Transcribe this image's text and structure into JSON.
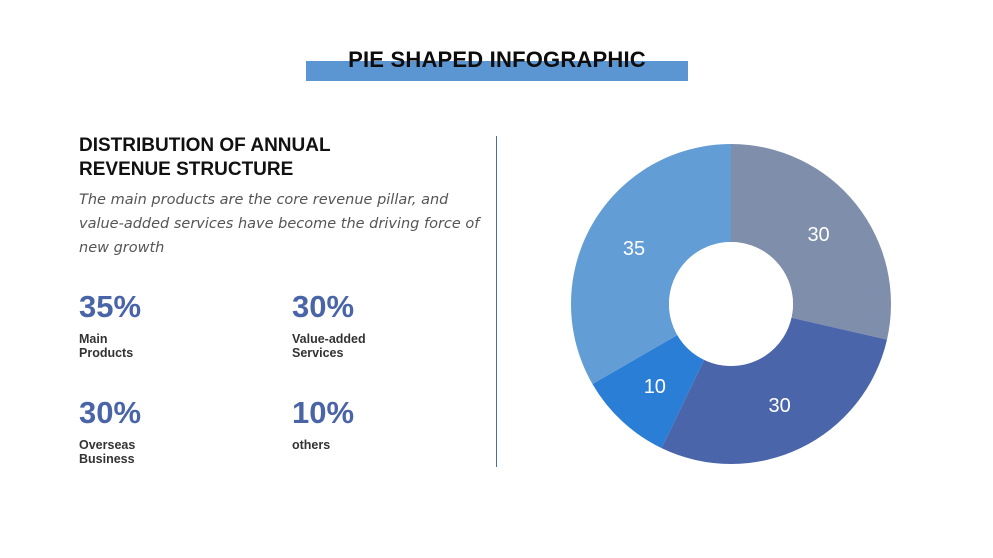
{
  "title": "PIE SHAPED INFOGRAPHIC",
  "heading": "DISTRIBUTION OF ANNUAL REVENUE STRUCTURE",
  "subtitle": "The main products are the core revenue pillar, and value-added services have become the driving force of new growth",
  "stats": [
    {
      "value": "35%",
      "label": "Main\nProducts"
    },
    {
      "value": "30%",
      "label": "Value-added\nServices"
    },
    {
      "value": "30%",
      "label": "Overseas\nBusiness"
    },
    {
      "value": "10%",
      "label": "others"
    }
  ],
  "colors": {
    "accent_bar": "#5b95d2",
    "stat_value": "#4a64a8",
    "divider": "#4a6fa8"
  },
  "chart_data": {
    "type": "pie",
    "donut": true,
    "start": "top",
    "direction": "clockwise",
    "slices": [
      {
        "name": "Value-added Services",
        "value": 30,
        "label": "30",
        "color": "#7e8eab"
      },
      {
        "name": "Overseas Business",
        "value": 30,
        "label": "30",
        "color": "#4a65aa"
      },
      {
        "name": "others",
        "value": 10,
        "label": "10",
        "color": "#2b7ed6"
      },
      {
        "name": "Main Products",
        "value": 35,
        "label": "35",
        "color": "#629dd5"
      }
    ]
  }
}
